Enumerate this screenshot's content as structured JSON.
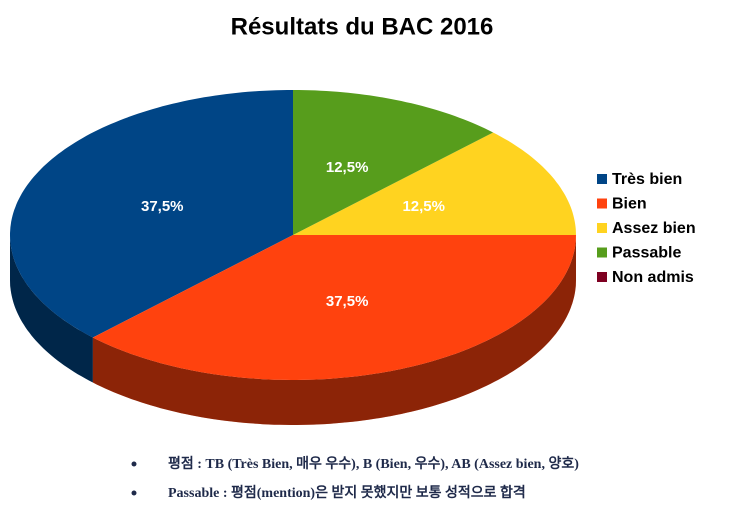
{
  "chart_data": {
    "type": "pie",
    "title": "Résultats du BAC 2016",
    "categories": [
      "Très bien",
      "Bien",
      "Assez bien",
      "Passable",
      "Non admis"
    ],
    "values": [
      37.5,
      37.5,
      12.5,
      12.5,
      0
    ],
    "value_labels": [
      "37,5%",
      "37,5%",
      "12,5%",
      "12,5%",
      null
    ],
    "colors": [
      "#004586",
      "#ff420e",
      "#ffd320",
      "#579d1c",
      "#7e0021"
    ],
    "legend": "right"
  },
  "notes": [
    "평점 : TB (Très Bien, 매우 우수), B (Bien, 우수), AB (Assez bien, 양호)",
    "Passable : 평점(mention)은 받지 못했지만 보통 성적으로 합격"
  ]
}
